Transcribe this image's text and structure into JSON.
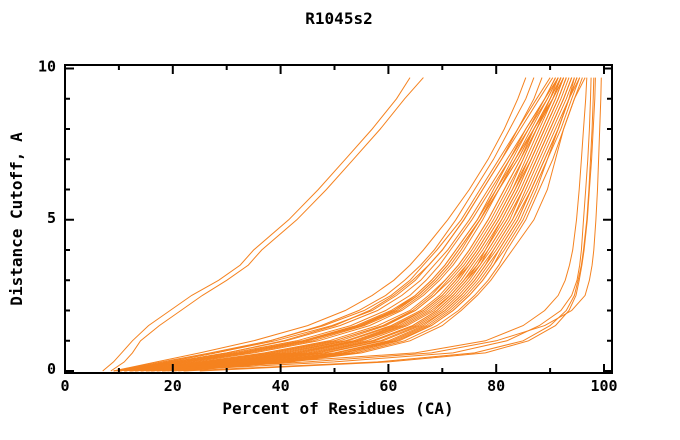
{
  "chart_data": {
    "type": "line",
    "title": "R1045s2",
    "xlabel": "Percent of Residues (CA)",
    "ylabel": "Distance Cutoff, A",
    "xlim": [
      0,
      101.5
    ],
    "ylim": [
      0,
      10.15
    ],
    "grid": "off",
    "legend": "none",
    "frame": "full-box-with-inward-ticks",
    "x_major_ticks": [
      0,
      20,
      40,
      60,
      80,
      100
    ],
    "x_minor_ticks": [
      10,
      30,
      50,
      70,
      90
    ],
    "y_major_ticks": [
      0,
      5,
      10
    ],
    "y_minor_ticks": [
      1,
      2,
      3,
      4,
      6,
      7,
      8,
      9
    ],
    "x_tick_labels": [
      "0",
      "20",
      "40",
      "60",
      "80",
      "100"
    ],
    "y_tick_labels": [
      "0",
      "5",
      "10"
    ],
    "line_color": "#F5821F",
    "axis_color": "#000000",
    "cutoffs": [
      0,
      0.3,
      0.6,
      1,
      1.5,
      2,
      2.5,
      3,
      3.5,
      4,
      5,
      6,
      7,
      8,
      9,
      9.7
    ],
    "series": [
      [
        7,
        9,
        10.5,
        12.5,
        15.5,
        19.5,
        23.5,
        28.5,
        32.5,
        35,
        41.5,
        47,
        52,
        57,
        61.5,
        64
      ],
      [
        8.5,
        11,
        12.5,
        14,
        17.5,
        21.5,
        25.5,
        30,
        34,
        36.5,
        43,
        48.5,
        53.5,
        58.5,
        63,
        66.5
      ],
      [
        9,
        17,
        25,
        35,
        45,
        52,
        57,
        61,
        64,
        66.5,
        71,
        75,
        78.5,
        81.5,
        84,
        85.5
      ],
      [
        10,
        19,
        28,
        38,
        47.5,
        54.5,
        59.5,
        63,
        66,
        68.5,
        72.5,
        76,
        79.5,
        82.5,
        85.5,
        87
      ],
      [
        11,
        20,
        30,
        40.5,
        50,
        56.5,
        61,
        64.5,
        67.5,
        70,
        74,
        77.5,
        81,
        84,
        87,
        88.5
      ],
      [
        10,
        22,
        33,
        45,
        55,
        61,
        65,
        68,
        70.5,
        72.5,
        76.5,
        79.5,
        82.5,
        85.5,
        89,
        91
      ],
      [
        12,
        26,
        38,
        50,
        59,
        64.5,
        68,
        70.5,
        73,
        75,
        78.5,
        81.5,
        84.5,
        87.5,
        90.5,
        92.5
      ],
      [
        14,
        30,
        43,
        54,
        62,
        67,
        70.5,
        73,
        75,
        77,
        80.5,
        83.5,
        86.5,
        89,
        91.5,
        93
      ],
      [
        9,
        20,
        30,
        41,
        51,
        58,
        62.5,
        66,
        68.5,
        71,
        75,
        78.5,
        82,
        85.5,
        89,
        91.5
      ],
      [
        16,
        33,
        46,
        57,
        64.5,
        69,
        72,
        74.5,
        76.5,
        78.5,
        82,
        85,
        87.5,
        90,
        92.5,
        94
      ],
      [
        11,
        24,
        35,
        47,
        56.5,
        62.5,
        66.5,
        69.5,
        72,
        74,
        77.5,
        80.5,
        83.5,
        86.5,
        89.5,
        91.5
      ],
      [
        18,
        36,
        50,
        60,
        66.5,
        70.5,
        73.5,
        76,
        78,
        80,
        83.5,
        86.5,
        89,
        91.5,
        93.5,
        95
      ],
      [
        13,
        28,
        40,
        52,
        60.5,
        66,
        69.5,
        72,
        74.5,
        76.5,
        80,
        83,
        86,
        88.5,
        91,
        92.5
      ],
      [
        20,
        40,
        53,
        62,
        68,
        72,
        75,
        77.5,
        79.5,
        81,
        84.5,
        87,
        89.5,
        92,
        94,
        95.5
      ],
      [
        10,
        21,
        32,
        44,
        54,
        60.5,
        65,
        68,
        70.5,
        72.5,
        76.5,
        80,
        83.5,
        87,
        90,
        92
      ],
      [
        15,
        31,
        44,
        55,
        63,
        68,
        71.5,
        74,
        76,
        78,
        81.5,
        84.5,
        87,
        89.5,
        92,
        93.5
      ],
      [
        9.5,
        19,
        28,
        39,
        49.5,
        57,
        61.5,
        65,
        67.5,
        70,
        74,
        77.5,
        81,
        84.5,
        88,
        90.5
      ],
      [
        17,
        35,
        48,
        58.5,
        65.5,
        70,
        73,
        75.5,
        77.5,
        79.5,
        83,
        86,
        88.5,
        91,
        93.5,
        94.5
      ],
      [
        12,
        25,
        37,
        49,
        58,
        64,
        67.5,
        70.5,
        73,
        75,
        78.5,
        81.5,
        84.5,
        87,
        90,
        92
      ],
      [
        19,
        38,
        51.5,
        61,
        67.5,
        71.5,
        74.5,
        77,
        79,
        80.5,
        84,
        86.5,
        89,
        91.5,
        93.5,
        95
      ],
      [
        11,
        23,
        34,
        46,
        55.5,
        62,
        66,
        69,
        71.5,
        73.5,
        77,
        80,
        83,
        86,
        89,
        91
      ],
      [
        14,
        29,
        42,
        53.5,
        61.5,
        66.5,
        70,
        72.5,
        74.5,
        76.5,
        80,
        83,
        85.5,
        88,
        90.5,
        92
      ],
      [
        16,
        34,
        47,
        57.5,
        65,
        69.5,
        72.5,
        75,
        77,
        79,
        82.5,
        85,
        87.5,
        90,
        92.5,
        94
      ],
      [
        10,
        20,
        31,
        43,
        53,
        59.5,
        64,
        67,
        69.5,
        71.5,
        75.5,
        79,
        82.5,
        86,
        89.5,
        91.5
      ],
      [
        13,
        27,
        39,
        51,
        59.5,
        65,
        68.5,
        71.5,
        74,
        76,
        79.5,
        82.5,
        85,
        87.5,
        90,
        91.5
      ],
      [
        21,
        41,
        54,
        63,
        69,
        73,
        76,
        78.5,
        80.5,
        82,
        85.5,
        88,
        90.5,
        92.5,
        94.5,
        96
      ],
      [
        9,
        18,
        27,
        38,
        48,
        55.5,
        60.5,
        64,
        66.5,
        69,
        73.5,
        77,
        80.5,
        84,
        87.5,
        90
      ],
      [
        15,
        32,
        45,
        56,
        63.5,
        68.5,
        71.5,
        74,
        76.5,
        78,
        81,
        84,
        86.5,
        89,
        91.5,
        93
      ],
      [
        18,
        37,
        50.5,
        60.5,
        67,
        71,
        74,
        76.5,
        78.5,
        80.5,
        84,
        86.5,
        89,
        91.5,
        93.5,
        95
      ],
      [
        11,
        22,
        33,
        45,
        55,
        61.5,
        65.5,
        68.5,
        71,
        73,
        77,
        80.5,
        84,
        87,
        90,
        92
      ],
      [
        14,
        30,
        43,
        54.5,
        62.5,
        67.5,
        71,
        73.5,
        75.5,
        77.5,
        81,
        84,
        86.5,
        89,
        91.5,
        93
      ],
      [
        20,
        39,
        52,
        61.5,
        68,
        72,
        75,
        77.5,
        79.5,
        81.5,
        85,
        87.5,
        89.5,
        91.5,
        93.5,
        95.5
      ],
      [
        12,
        26,
        38,
        50,
        59,
        65,
        68.5,
        71,
        73.5,
        75.5,
        79,
        82,
        85,
        87.5,
        90.5,
        92
      ],
      [
        17,
        35,
        48.5,
        59,
        66,
        70.5,
        73.5,
        76,
        78,
        79.5,
        83,
        85.5,
        88,
        90.5,
        93,
        94.5
      ],
      [
        10,
        21.5,
        33,
        44.5,
        54.5,
        61,
        65.5,
        68.5,
        71,
        73,
        77,
        80.5,
        84,
        87,
        90.5,
        92.5
      ],
      [
        13,
        28,
        41,
        52.5,
        61,
        66.5,
        70,
        72.5,
        75,
        77,
        80.5,
        83.5,
        86,
        88.5,
        91,
        92.5
      ],
      [
        16,
        33,
        46,
        57,
        64.5,
        69,
        72,
        74.5,
        77,
        78.5,
        82,
        85,
        87.5,
        90,
        92.5,
        94
      ],
      [
        22,
        42,
        55,
        64,
        70,
        73.5,
        76.5,
        79,
        81,
        83,
        87,
        89.5,
        91,
        92.5,
        94.5,
        96.5
      ],
      [
        18,
        50,
        72,
        82,
        88,
        92,
        94,
        95,
        95.5,
        95.8,
        96.2,
        96.6,
        97,
        97.3,
        97.5,
        97.6
      ],
      [
        22,
        58,
        76,
        85,
        90,
        93,
        94.5,
        95.2,
        95.8,
        96.2,
        96.8,
        97.2,
        97.5,
        97.8,
        98,
        98.1
      ],
      [
        15,
        45,
        68,
        80,
        89,
        94,
        96.5,
        97.3,
        97.8,
        98.1,
        98.5,
        98.8,
        99,
        99.2,
        99.4,
        99.5
      ],
      [
        25,
        60,
        78,
        86,
        91,
        93.5,
        94.8,
        95.4,
        95.9,
        96.3,
        96.9,
        97.3,
        97.7,
        98,
        98.3,
        98.4
      ],
      [
        12,
        40,
        65,
        78,
        85,
        89,
        91.5,
        92.8,
        93.6,
        94.2,
        94.9,
        95.4,
        95.8,
        96.2,
        96.6,
        96.8
      ]
    ]
  }
}
